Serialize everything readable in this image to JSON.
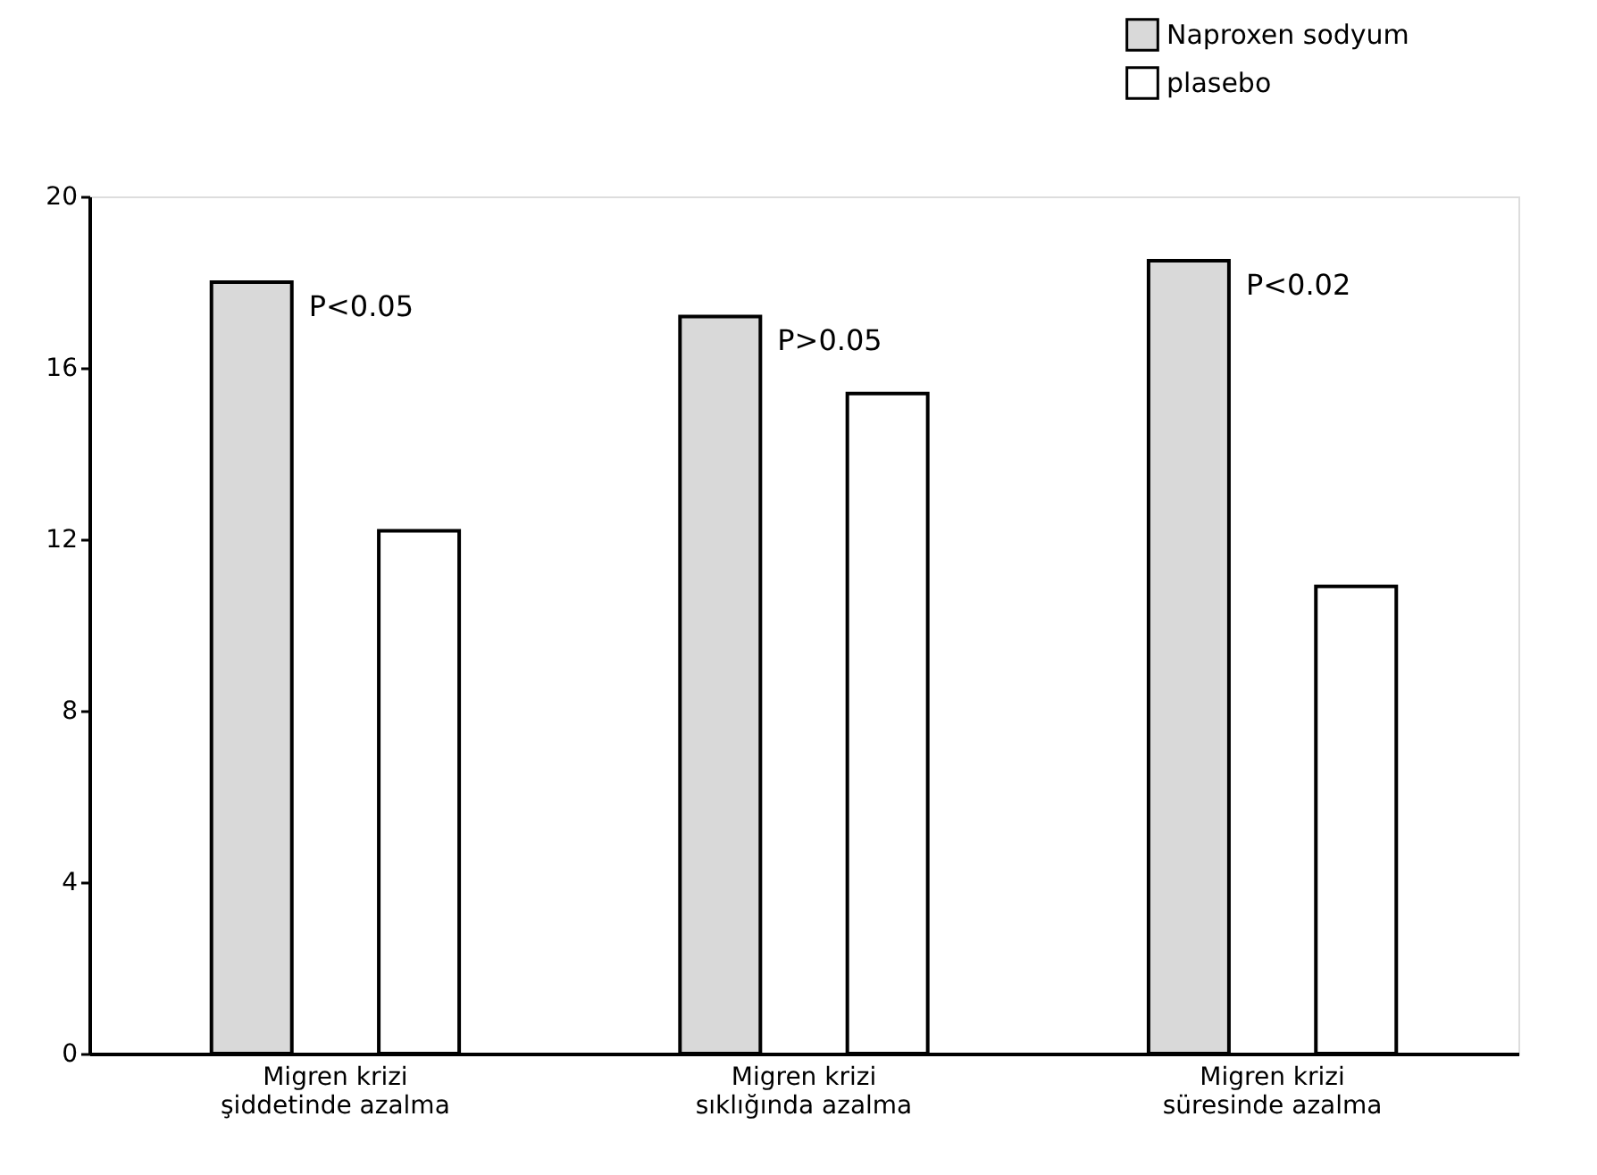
{
  "chart_data": {
    "type": "bar",
    "categories": [
      "Migren krizi\nşiddetinde azalma",
      "Migren krizi\nsıklığında azalma",
      "Migren krizi\nsüresinde azalma"
    ],
    "series": [
      {
        "name": "Naproxen sodyum",
        "color": "#d9d9d9",
        "values": [
          18.0,
          17.2,
          18.5
        ]
      },
      {
        "name": "plasebo",
        "color": "#ffffff",
        "values": [
          12.2,
          15.4,
          10.9
        ]
      }
    ],
    "ylim": [
      0,
      20
    ],
    "yticks": [
      0,
      4,
      8,
      12,
      16,
      20
    ],
    "grid": false,
    "legend": "top right",
    "annotations": [
      "P<0.05",
      "P>0.05",
      "P<0.02"
    ]
  }
}
